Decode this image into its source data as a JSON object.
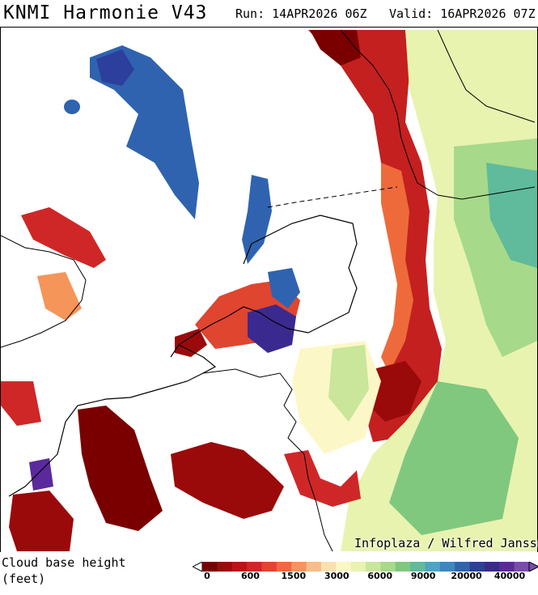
{
  "header": {
    "model": "KNMI Harmonie V43",
    "run": "Run: 14APR2026 06Z",
    "valid": "Valid: 16APR2026 07Z"
  },
  "map": {
    "credit": "Infoplaza / Wilfred Janssen"
  },
  "legend": {
    "variable": "Cloud base height",
    "unit": "(feet)",
    "scale_labels": [
      "0",
      "600",
      "1500",
      "3000",
      "6000",
      "9000",
      "20000",
      "40000"
    ],
    "colors": [
      "#7a0000",
      "#9a0a0a",
      "#b81418",
      "#cf2727",
      "#e0452f",
      "#ef6a3a",
      "#f5955a",
      "#f9bd85",
      "#fbe0b0",
      "#fcf7c6",
      "#e8f3b0",
      "#c9e69a",
      "#a7d98a",
      "#7fc87e",
      "#5fbb9b",
      "#4aa6c4",
      "#3a87c4",
      "#2f63b0",
      "#2c3f9c",
      "#3a2a8f",
      "#5a2a9c",
      "#7b4bb0"
    ]
  }
}
